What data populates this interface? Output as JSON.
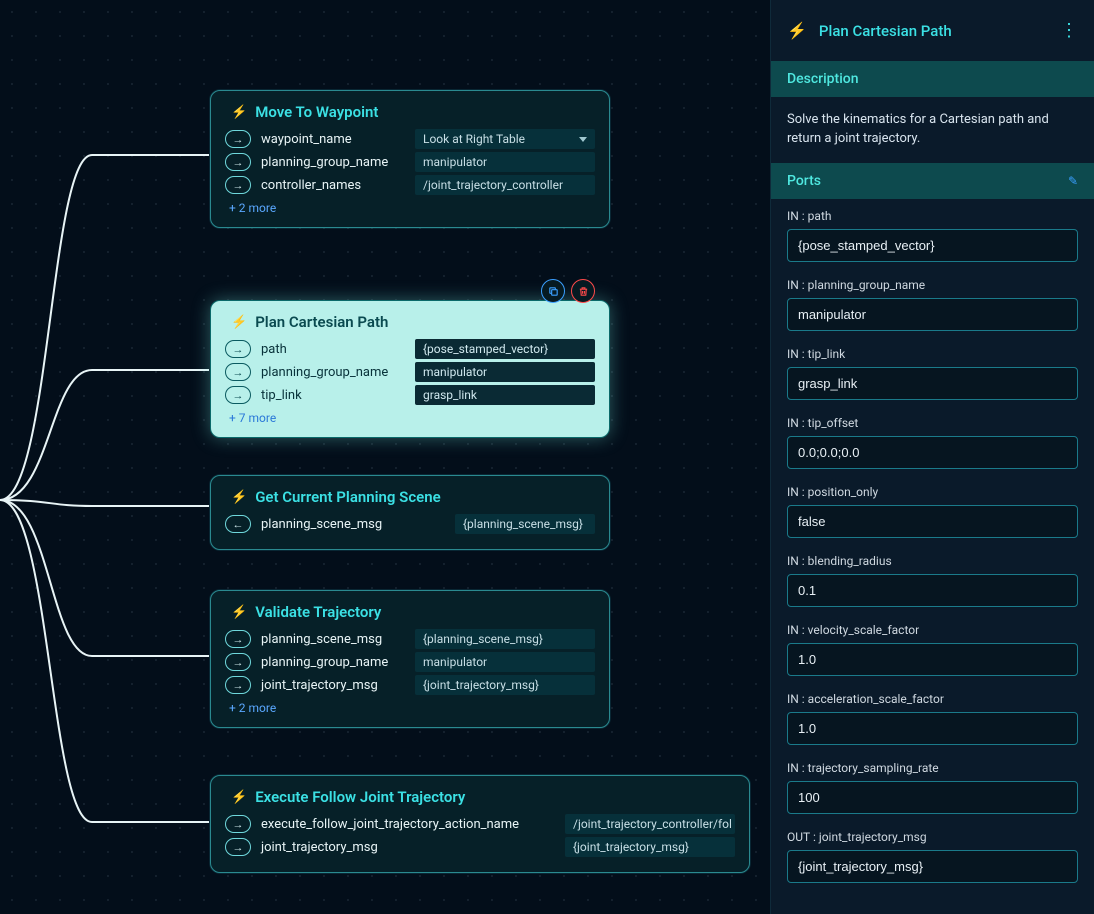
{
  "colors": {
    "bg": "#030e1a",
    "accent": "#3be0e4",
    "nodeBg": "#062028",
    "selectedBg": "#b8f0ea",
    "border": "#2a8a90",
    "valueBg": "#06303a",
    "link": "#5aa8ff",
    "delete": "#ff4a4a",
    "edge": "#e8f4f6"
  },
  "nodes": {
    "move": {
      "title": "Move To Waypoint",
      "params": [
        {
          "dir": "in",
          "name": "waypoint_name",
          "value": "Look at Right Table",
          "select": true
        },
        {
          "dir": "in",
          "name": "planning_group_name",
          "value": "manipulator"
        },
        {
          "dir": "in",
          "name": "controller_names",
          "value": "/joint_trajectory_controller"
        }
      ],
      "more": "+ 2 more"
    },
    "plan": {
      "title": "Plan Cartesian Path",
      "params": [
        {
          "dir": "in",
          "name": "path",
          "value": "{pose_stamped_vector}"
        },
        {
          "dir": "in",
          "name": "planning_group_name",
          "value": "manipulator"
        },
        {
          "dir": "in",
          "name": "tip_link",
          "value": "grasp_link"
        }
      ],
      "more": "+ 7 more"
    },
    "scene": {
      "title": "Get Current Planning Scene",
      "params": [
        {
          "dir": "out",
          "name": "planning_scene_msg",
          "value": "{planning_scene_msg}"
        }
      ]
    },
    "validate": {
      "title": "Validate Trajectory",
      "params": [
        {
          "dir": "in",
          "name": "planning_scene_msg",
          "value": "{planning_scene_msg}"
        },
        {
          "dir": "in",
          "name": "planning_group_name",
          "value": "manipulator"
        },
        {
          "dir": "in",
          "name": "joint_trajectory_msg",
          "value": "{joint_trajectory_msg}"
        }
      ],
      "more": "+ 2 more"
    },
    "execute": {
      "title": "Execute Follow Joint Trajectory",
      "params": [
        {
          "dir": "in",
          "name": "execute_follow_joint_trajectory_action_name",
          "value": "/joint_trajectory_controller/fol"
        },
        {
          "dir": "in",
          "name": "joint_trajectory_msg",
          "value": "{joint_trajectory_msg}"
        }
      ]
    }
  },
  "sidebar": {
    "title": "Plan Cartesian Path",
    "description_hdr": "Description",
    "description": "Solve the kinematics for a Cartesian path and return a joint trajectory.",
    "ports_hdr": "Ports",
    "ports": [
      {
        "label": "IN : path",
        "value": "{pose_stamped_vector}"
      },
      {
        "label": "IN : planning_group_name",
        "value": "manipulator"
      },
      {
        "label": "IN : tip_link",
        "value": "grasp_link"
      },
      {
        "label": "IN : tip_offset",
        "value": "0.0;0.0;0.0"
      },
      {
        "label": "IN : position_only",
        "value": "false"
      },
      {
        "label": "IN : blending_radius",
        "value": "0.1"
      },
      {
        "label": "IN : velocity_scale_factor",
        "value": "1.0"
      },
      {
        "label": "IN : acceleration_scale_factor",
        "value": "1.0"
      },
      {
        "label": "IN : trajectory_sampling_rate",
        "value": "100"
      },
      {
        "label": "OUT : joint_trajectory_msg",
        "value": "{joint_trajectory_msg}"
      }
    ]
  }
}
